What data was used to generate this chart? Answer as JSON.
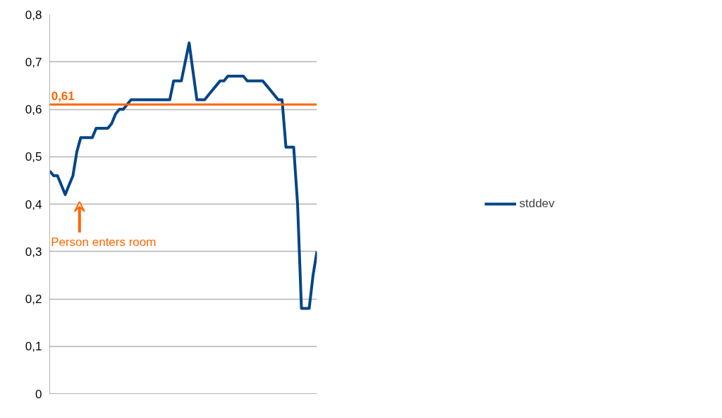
{
  "chart_data": {
    "type": "line",
    "categories": [
      null,
      null,
      null,
      null,
      null,
      null,
      null,
      null,
      null,
      null,
      null,
      null,
      null,
      null,
      null,
      null,
      null,
      null,
      null,
      null,
      null,
      null,
      null,
      null,
      null,
      null,
      null,
      null,
      null,
      null,
      null,
      null,
      null,
      null,
      null,
      null,
      null,
      null,
      null,
      null,
      null,
      null,
      null,
      null,
      null,
      null,
      null,
      null,
      null,
      null,
      null,
      null,
      null,
      null,
      null,
      null,
      null,
      null,
      null,
      null,
      null,
      null,
      null,
      null,
      null,
      null,
      null,
      null,
      null,
      null
    ],
    "series": [
      {
        "name": "stddev",
        "color": "#004586",
        "values": [
          0.47,
          0.46,
          0.46,
          0.44,
          0.42,
          0.44,
          0.46,
          0.51,
          0.54,
          0.54,
          0.54,
          0.54,
          0.56,
          0.56,
          0.56,
          0.56,
          0.57,
          0.59,
          0.6,
          0.6,
          0.61,
          0.62,
          0.62,
          0.62,
          0.62,
          0.62,
          0.62,
          0.62,
          0.62,
          0.62,
          0.62,
          0.62,
          0.66,
          0.66,
          0.66,
          0.7,
          0.74,
          0.68,
          0.62,
          0.62,
          0.62,
          0.63,
          0.64,
          0.65,
          0.66,
          0.66,
          0.67,
          0.67,
          0.67,
          0.67,
          0.67,
          0.66,
          0.66,
          0.66,
          0.66,
          0.66,
          0.65,
          0.64,
          0.63,
          0.62,
          0.62,
          0.52,
          0.52,
          0.52,
          0.4,
          0.18,
          0.18,
          0.18,
          0.25,
          0.3
        ]
      }
    ],
    "ylim": [
      0,
      0.8
    ],
    "yticks": [
      0,
      {
        "value": 0.1,
        "label": "0,1"
      },
      {
        "value": 0.2,
        "label": "0,2"
      },
      {
        "value": 0.3,
        "label": "0,3"
      },
      {
        "value": 0.4,
        "label": "0,4"
      },
      {
        "value": 0.5,
        "label": "0,5"
      },
      {
        "value": 0.6,
        "label": "0,6"
      },
      {
        "value": 0.7,
        "label": "0,7"
      },
      {
        "value": 0.8,
        "label": "0,8"
      }
    ],
    "ref_lines": [
      {
        "axis": "y",
        "value": 0.61,
        "label": "0,61",
        "color": "#ff6600"
      }
    ],
    "annotations": [
      "Person enters room"
    ],
    "grid": "y",
    "legend": "right",
    "tick_labels": "y",
    "marker": "none",
    "line_style": "solid"
  }
}
